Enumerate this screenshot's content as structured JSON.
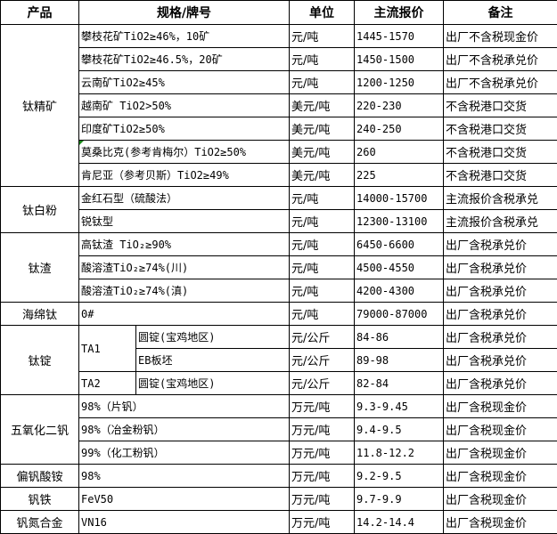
{
  "headers": [
    "产品",
    "规格/牌号",
    "单位",
    "主流报价",
    "备注"
  ],
  "groups": [
    {
      "product": "钛精矿",
      "rows": [
        {
          "spec": "攀枝花矿TiO2≥46%，10矿",
          "unit": "元/吨",
          "price": "1445-1570",
          "note": "出厂不含税现金价"
        },
        {
          "spec": "攀枝花矿TiO2≥46.5%，20矿",
          "unit": "元/吨",
          "price": "1450-1500",
          "note": "出厂不含税承兑价"
        },
        {
          "spec": "云南矿TiO2≥45%",
          "unit": "元/吨",
          "price": "1200-1250",
          "note": "出厂不含税承兑价"
        },
        {
          "spec": "越南矿 TiO2>50%",
          "unit": "美元/吨",
          "price": "220-230",
          "note": "不含税港口交货"
        },
        {
          "spec": "印度矿TiO2≥50%",
          "unit": "美元/吨",
          "price": "240-250",
          "note": "不含税港口交货"
        },
        {
          "spec": "莫桑比克(参考肯梅尔）TiO2≥50%",
          "unit": "美元/吨",
          "price": "260",
          "note": "不含税港口交货",
          "comment_marker": true
        },
        {
          "spec": "肯尼亚（参考贝斯）TiO2≥49%",
          "unit": "美元/吨",
          "price": "225",
          "note": "不含税港口交货"
        }
      ]
    },
    {
      "product": "钛白粉",
      "rows": [
        {
          "spec": "金红石型（硫酸法）",
          "unit": "元/吨",
          "price": "14000-15700",
          "note": "主流报价含税承兑"
        },
        {
          "spec": "锐钛型",
          "unit": "元/吨",
          "price": "12300-13100",
          "note": "主流报价含税承兑"
        }
      ]
    },
    {
      "product": "钛渣",
      "rows": [
        {
          "spec": "高钛渣 TiO₂≥90%",
          "unit": "元/吨",
          "price": "6450-6600",
          "note": "出厂含税承兑价"
        },
        {
          "spec": "酸溶渣TiO₂≥74%(川)",
          "unit": "元/吨",
          "price": "4500-4550",
          "note": "出厂含税承兑价"
        },
        {
          "spec": "酸溶渣TiO₂≥74%(滇)",
          "unit": "元/吨",
          "price": "4200-4300",
          "note": "出厂含税承兑价"
        }
      ]
    },
    {
      "product": "海绵钛",
      "rows": [
        {
          "spec": "0#",
          "unit": "元/吨",
          "price": "79000-87000",
          "note": "出厂含税承兑价"
        }
      ]
    },
    {
      "product": "钛锭",
      "rows": [
        {
          "grade": "TA1",
          "grade_span": 2,
          "spec": "圆锭(宝鸡地区)",
          "unit": "元/公斤",
          "price": "84-86",
          "note": "出厂含税承兑价"
        },
        {
          "spec": "EB板坯",
          "unit": "元/公斤",
          "price": "89-98",
          "note": "出厂含税承兑价"
        },
        {
          "grade": "TA2",
          "grade_span": 1,
          "spec": "圆锭(宝鸡地区)",
          "unit": "元/公斤",
          "price": "82-84",
          "note": "出厂含税承兑价"
        }
      ]
    },
    {
      "product": "五氧化二钒",
      "rows": [
        {
          "spec": "98%（片钒）",
          "unit": "万元/吨",
          "price": "9.3-9.45",
          "note": "出厂含税现金价"
        },
        {
          "spec": "98%（冶金粉钒）",
          "unit": "万元/吨",
          "price": "9.4-9.5",
          "note": "出厂含税现金价"
        },
        {
          "spec": "99%（化工粉钒）",
          "unit": "万元/吨",
          "price": "11.8-12.2",
          "note": "出厂含税现金价"
        }
      ]
    },
    {
      "product": "偏钒酸铵",
      "rows": [
        {
          "spec": "98%",
          "unit": "万元/吨",
          "price": "9.2-9.5",
          "note": "出厂含税现金价"
        }
      ]
    },
    {
      "product": "钒铁",
      "rows": [
        {
          "spec": "FeV50",
          "unit": "万元/吨",
          "price": "9.7-9.9",
          "note": "出厂含税现金价"
        }
      ]
    },
    {
      "product": "钒氮合金",
      "rows": [
        {
          "spec": "VN16",
          "unit": "万元/吨",
          "price": "14.2-14.4",
          "note": "出厂含税现金价"
        }
      ]
    }
  ]
}
